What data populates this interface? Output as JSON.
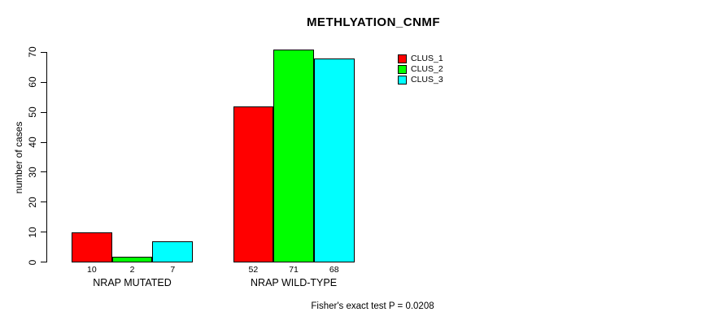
{
  "title": "METHLYATION_CNMF",
  "footer_note": "Fisher's exact test P = 0.0208",
  "colors": {
    "clus_1": "#ff0000",
    "clus_2": "#00ff00",
    "clus_3": "#00ffff",
    "axis": "#000000",
    "background": "#ffffff"
  },
  "chart_data": {
    "type": "bar",
    "title": "METHLYATION_CNMF",
    "xlabel": "",
    "ylabel": "number of cases",
    "categories": [
      "NRAP MUTATED",
      "NRAP WILD-TYPE"
    ],
    "series": [
      {
        "name": "CLUS_1",
        "color": "#ff0000",
        "values": [
          10,
          52
        ]
      },
      {
        "name": "CLUS_2",
        "color": "#00ff00",
        "values": [
          2,
          71
        ]
      },
      {
        "name": "CLUS_3",
        "color": "#00ffff",
        "values": [
          7,
          68
        ]
      }
    ],
    "bar_value_labels": [
      [
        "10",
        "2",
        "7"
      ],
      [
        "52",
        "71",
        "68"
      ]
    ],
    "yticks": [
      0,
      10,
      20,
      30,
      40,
      50,
      60,
      70
    ],
    "ytick_labels": [
      "0",
      "10",
      "20",
      "30",
      "40",
      "50",
      "60",
      "70"
    ],
    "ylim": [
      0,
      71
    ],
    "grid": false,
    "legend_position": "top-right",
    "legend_entries": [
      "CLUS_1",
      "CLUS_2",
      "CLUS_3"
    ],
    "annotation": "Fisher's exact test P = 0.0208"
  }
}
